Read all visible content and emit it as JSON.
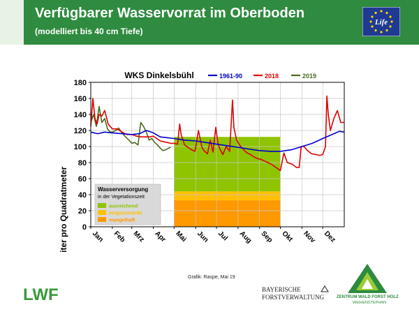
{
  "header": {
    "title": "Verfügbarer Wasservorrat im Oberboden",
    "subtitle": "(modelliert bis 40 cm Tiefe)",
    "life_logo_text": "Life"
  },
  "colors": {
    "header_bg": "#2e8b3f",
    "series_1961_90": "#0000cc",
    "series_2018": "#dd0000",
    "series_2019": "#4a6a1a",
    "band_ausreichend": "#8fc400",
    "band_eingeschraenkt": "#ffc000",
    "band_mangelhaft": "#ff9900"
  },
  "chart_data": {
    "type": "line",
    "title": "WKS Dinkelsbühl",
    "ylabel": "Liter pro Quadratmeter",
    "xlabel": "",
    "ylim": [
      0,
      180
    ],
    "xlim": [
      0,
      365
    ],
    "yticks": [
      0,
      20,
      40,
      60,
      80,
      100,
      120,
      140,
      160,
      180
    ],
    "months": [
      "Jan",
      "Feb",
      "Mrz",
      "Apr",
      "Mai",
      "Jun",
      "Jul",
      "Aug",
      "Sep",
      "Okt",
      "Nov",
      "Dez"
    ],
    "month_starts": [
      0,
      31,
      59,
      90,
      120,
      151,
      181,
      212,
      243,
      273,
      304,
      334
    ],
    "grid": true,
    "legend_position": "top",
    "bands": {
      "x_range_months": [
        "Mai",
        "Okt"
      ],
      "levels": [
        {
          "label": "ausreichend",
          "from": 44,
          "to": 112,
          "color": "#8fc400"
        },
        {
          "label": "eingeschränkt",
          "from": 33,
          "to": 44,
          "color": "#ffc000"
        },
        {
          "label": "mangelhaft",
          "from": 0,
          "to": 33,
          "color": "#ff9900"
        }
      ]
    },
    "band_legend": {
      "title": "Wasserversorgung",
      "subtitle": "in der Vegetationszeit",
      "items": [
        "ausreichend",
        "eingeschränkt",
        "mangelhaft"
      ]
    },
    "series": [
      {
        "name": "1961-90",
        "color": "#0000cc",
        "x": [
          0,
          10,
          20,
          31,
          45,
          59,
          70,
          80,
          90,
          100,
          110,
          120,
          135,
          151,
          166,
          181,
          196,
          212,
          227,
          243,
          258,
          273,
          289,
          304,
          319,
          334,
          350,
          358,
          365
        ],
        "y": [
          118,
          116,
          118,
          117,
          116,
          115,
          116,
          120,
          117,
          112,
          111,
          110,
          108,
          107,
          105,
          103,
          101,
          99,
          97,
          95,
          94,
          94,
          96,
          100,
          104,
          110,
          116,
          119,
          118
        ]
      },
      {
        "name": "2018",
        "color": "#dd0000",
        "x": [
          0,
          3,
          6,
          9,
          12,
          16,
          20,
          25,
          31,
          38,
          45,
          52,
          59,
          66,
          73,
          80,
          85,
          90,
          95,
          100,
          105,
          110,
          115,
          120,
          125,
          128,
          130,
          135,
          140,
          145,
          150,
          155,
          160,
          163,
          168,
          172,
          176,
          180,
          183,
          186,
          190,
          195,
          200,
          204,
          206,
          210,
          215,
          220,
          225,
          230,
          235,
          240,
          245,
          250,
          255,
          260,
          265,
          270,
          273,
          278,
          283,
          290,
          296,
          300,
          303,
          307,
          312,
          318,
          324,
          330,
          334,
          338,
          340,
          342,
          345,
          350,
          355,
          360,
          365
        ],
        "y": [
          125,
          160,
          135,
          128,
          140,
          138,
          145,
          128,
          122,
          122,
          118,
          115,
          115,
          113,
          112,
          112,
          112,
          113,
          110,
          107,
          106,
          105,
          104,
          104,
          103,
          128,
          115,
          102,
          99,
          96,
          94,
          120,
          99,
          95,
          91,
          108,
          93,
          124,
          104,
          97,
          90,
          100,
          94,
          158,
          124,
          108,
          101,
          96,
          92,
          90,
          87,
          85,
          84,
          82,
          80,
          78,
          75,
          72,
          70,
          92,
          80,
          78,
          74,
          74,
          100,
          100,
          95,
          91,
          90,
          89,
          90,
          100,
          163,
          140,
          120,
          135,
          145,
          130,
          130
        ]
      },
      {
        "name": "2019",
        "color": "#4a6a1a",
        "x": [
          0,
          4,
          8,
          12,
          16,
          20,
          24,
          28,
          31,
          36,
          40,
          45,
          50,
          55,
          59,
          63,
          68,
          72,
          76,
          80,
          84,
          88,
          92,
          96,
          100,
          104,
          108,
          112,
          115
        ],
        "y": [
          130,
          140,
          125,
          150,
          130,
          135,
          122,
          118,
          118,
          120,
          123,
          117,
          112,
          108,
          104,
          105,
          102,
          130,
          125,
          118,
          108,
          110,
          105,
          102,
          98,
          95,
          96,
          98,
          99
        ]
      }
    ]
  },
  "credit": "Grafik: Raspe, Mai 19",
  "logos": {
    "lwf": "LWF",
    "bayern_line1": "BAYERISCHE",
    "bayern_line2": "FORSTVERWALTUNG",
    "zentrum_line1": "ZENTRUM WALD FORST HOLZ",
    "zentrum_line2": "WEIHENSTEPHAN"
  }
}
